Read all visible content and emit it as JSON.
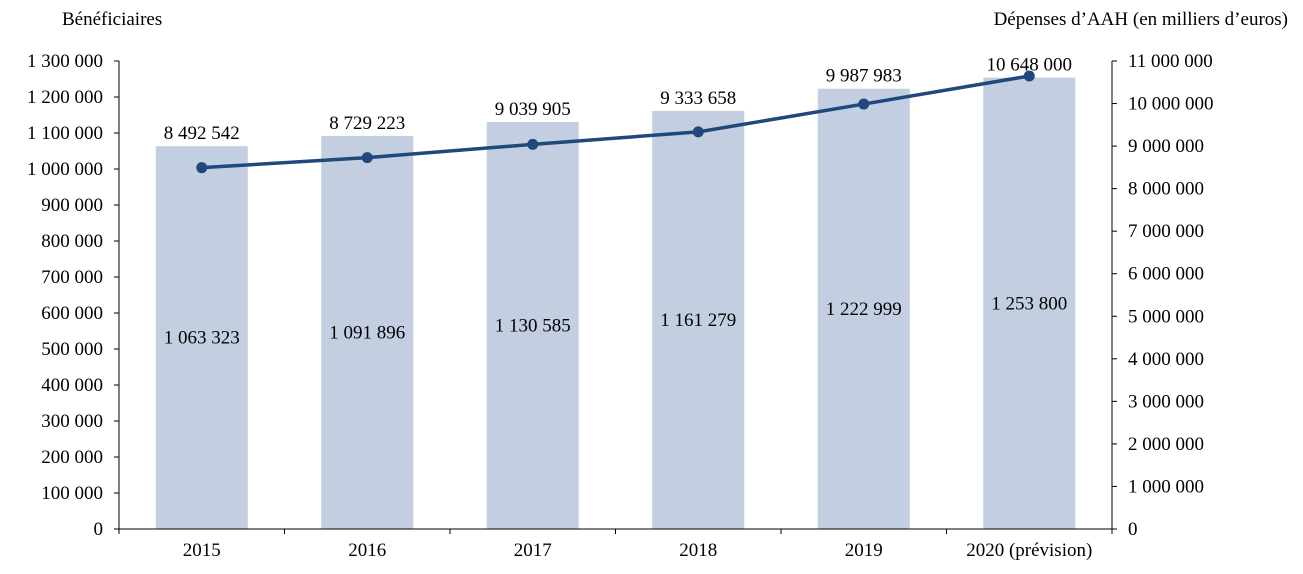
{
  "chart_data": {
    "type": "bar+line",
    "categories": [
      "2015",
      "2016",
      "2017",
      "2018",
      "2019",
      "2020 (prévision)"
    ],
    "left_axis": {
      "title": "Bénéficiaires",
      "ylim": [
        0,
        1300000
      ],
      "ticks": [
        0,
        100000,
        200000,
        300000,
        400000,
        500000,
        600000,
        700000,
        800000,
        900000,
        1000000,
        1100000,
        1200000,
        1300000
      ],
      "tick_labels": [
        "0",
        "100 000",
        "200 000",
        "300 000",
        "400 000",
        "500 000",
        "600 000",
        "700 000",
        "800 000",
        "900 000",
        "1 000 000",
        "1 100 000",
        "1 200 000",
        "1 300 000"
      ]
    },
    "right_axis": {
      "title": "Dépenses d’AAH (en milliers d’euros)",
      "ylim": [
        0,
        11000000
      ],
      "ticks": [
        0,
        1000000,
        2000000,
        3000000,
        4000000,
        5000000,
        6000000,
        7000000,
        8000000,
        9000000,
        10000000,
        11000000
      ],
      "tick_labels": [
        "0",
        "1 000 000",
        "2 000 000",
        "3 000 000",
        "4 000 000",
        "5 000 000",
        "6 000 000",
        "7 000 000",
        "8 000 000",
        "9 000 000",
        "10 000 000",
        "11 000 000"
      ]
    },
    "series": [
      {
        "kind": "bar",
        "axis": "left",
        "color": "#c3cee1",
        "values": [
          1063323,
          1091896,
          1130585,
          1161279,
          1222999,
          1253800
        ],
        "labels": [
          "1 063 323",
          "1 091 896",
          "1 130 585",
          "1 161 279",
          "1 222 999",
          "1 253 800"
        ]
      },
      {
        "kind": "line",
        "axis": "right",
        "color": "#1f497d",
        "values": [
          8492542,
          8729223,
          9039905,
          9333658,
          9987983,
          10648000
        ],
        "labels": [
          "8 492 542",
          "8 729 223",
          "9 039 905",
          "9 333 658",
          "9 987 983",
          "10 648 000"
        ]
      }
    ],
    "grid": false,
    "legend": "none"
  }
}
